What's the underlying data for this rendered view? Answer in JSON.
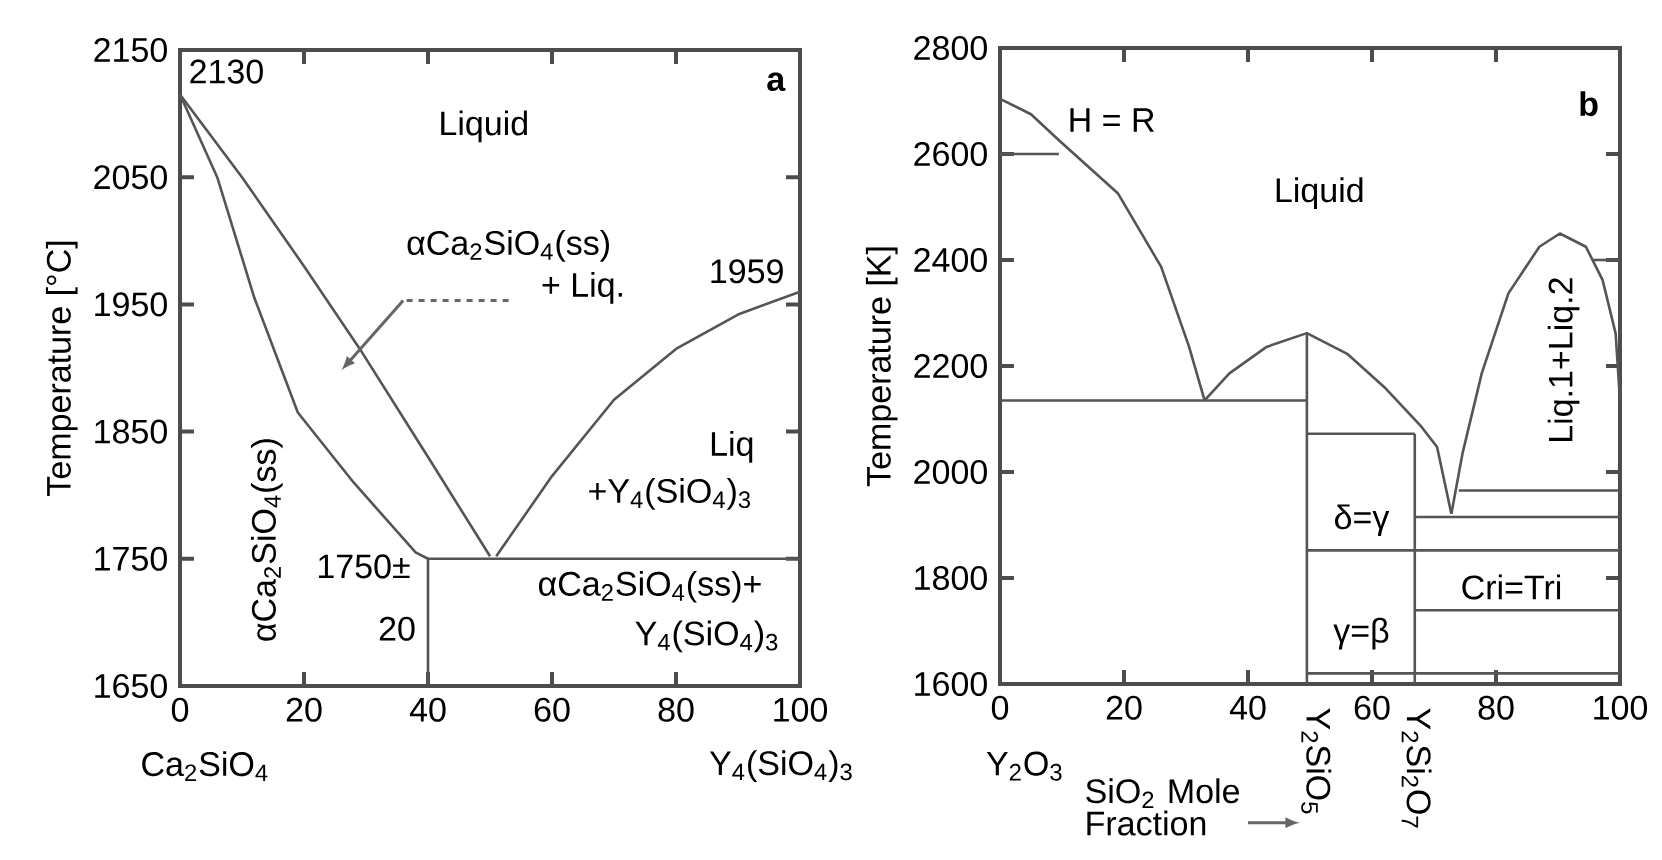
{
  "chart_data": [
    {
      "type": "line",
      "ylabel": "Temperature [°C]",
      "xlim": [
        0,
        100
      ],
      "ylim": [
        1650,
        2150
      ],
      "xticks": [
        0,
        20,
        40,
        60,
        80,
        100
      ],
      "yticks": [
        1650,
        1750,
        1850,
        1950,
        2050,
        2150
      ],
      "annotations": [
        "2130",
        "a",
        "Liquid",
        "αCa$_{2}$SiO$_{4}$(ss)",
        "+ Liq.",
        "1959",
        "Liq",
        "+Y$_{4}$(SiO$_{4}$)$_{3}$",
        "1750±",
        "20",
        "αCa$_{2}$SiO$_{4}$(ss)+",
        "Y$_{4}$(SiO$_{4}$)$_{3}$",
        "αCa$_{2}$SiO$_{4}$(ss)",
        "Ca$_{2}$SiO$_{4}$",
        "Y$_{4}$(SiO$_{4}$)$_{3}$"
      ],
      "series": [
        {
          "color": "#555555",
          "x": [
            0,
            10,
            20,
            29,
            40,
            50
          ],
          "values": [
            2115,
            2050,
            1980,
            1915,
            1830,
            1752
          ]
        },
        {
          "color": "#555555",
          "x": [
            0,
            6,
            12,
            19,
            28,
            38,
            40
          ],
          "values": [
            2115,
            2050,
            1955,
            1865,
            1810,
            1755,
            1750
          ]
        },
        {
          "color": "#555555",
          "x": [
            51,
            60,
            70,
            80,
            90,
            100
          ],
          "values": [
            1752,
            1815,
            1875,
            1915,
            1942,
            1960
          ]
        },
        {
          "color": "#555555",
          "x": [
            40,
            100
          ],
          "values": [
            1750,
            1750
          ]
        },
        {
          "color": "#555555",
          "x": [
            40,
            40
          ],
          "values": [
            1650,
            1750
          ]
        }
      ]
    },
    {
      "type": "line",
      "ylabel": "Temperature [K]",
      "xlabel": "SiO$_{2}$ Mole Fraction",
      "xlim": [
        0,
        100
      ],
      "ylim": [
        1600,
        2800
      ],
      "xticks": [
        0,
        20,
        40,
        60,
        80,
        100
      ],
      "yticks": [
        1600,
        1800,
        2000,
        2200,
        2400,
        2600,
        2800
      ],
      "annotations": [
        "H = R",
        "b",
        "Liquid",
        "Liq.1+Liq.2",
        "δ=γ",
        "Cri=Tri",
        "γ=β",
        "Y$_{2}$O$_{3}$",
        "Y$_{2}$SiO$_{5}$",
        "Y$_{2}$Si$_{2}$O$_{7}$"
      ],
      "series": [
        {
          "color": "#555555",
          "x": [
            0,
            5,
            9.5,
            19,
            26,
            30.5,
            33
          ],
          "values": [
            2704,
            2675,
            2626,
            2526,
            2387,
            2236,
            2135
          ]
        },
        {
          "color": "#555555",
          "x": [
            0,
            9.5
          ],
          "values": [
            2600,
            2600
          ]
        },
        {
          "color": "#555555",
          "x": [
            33,
            37,
            43,
            49.5,
            56,
            62,
            68,
            70.5,
            72.8
          ],
          "values": [
            2135,
            2186,
            2236,
            2262,
            2223,
            2160,
            2085,
            2047,
            1921
          ]
        },
        {
          "color": "#555555",
          "x": [
            72.8,
            74.6,
            77.7,
            82,
            87,
            90.3,
            94.5,
            97.2,
            99.3,
            100
          ],
          "values": [
            1921,
            2035,
            2186,
            2337,
            2425,
            2450,
            2425,
            2362,
            2261,
            2135
          ]
        },
        {
          "color": "#555555",
          "x": [
            95.5,
            100
          ],
          "values": [
            2400,
            2400
          ]
        },
        {
          "color": "#555555",
          "x": [
            0,
            49.5
          ],
          "values": [
            2135,
            2135
          ]
        },
        {
          "color": "#555555",
          "x": [
            49.5,
            49.5
          ],
          "values": [
            1600,
            2262
          ]
        },
        {
          "color": "#555555",
          "x": [
            49.5,
            66.9
          ],
          "values": [
            2072,
            2072
          ]
        },
        {
          "color": "#555555",
          "x": [
            66.9,
            66.9
          ],
          "values": [
            1600,
            2072
          ]
        },
        {
          "color": "#555555",
          "x": [
            49.5,
            100
          ],
          "values": [
            1852,
            1852
          ]
        },
        {
          "color": "#555555",
          "x": [
            66.9,
            100
          ],
          "values": [
            1915,
            1915
          ]
        },
        {
          "color": "#555555",
          "x": [
            74,
            100
          ],
          "values": [
            1965,
            1965
          ]
        },
        {
          "color": "#555555",
          "x": [
            66.9,
            100
          ],
          "values": [
            1739,
            1739
          ]
        },
        {
          "color": "#555555",
          "x": [
            49.5,
            100
          ],
          "values": [
            1620,
            1620
          ]
        }
      ]
    }
  ]
}
